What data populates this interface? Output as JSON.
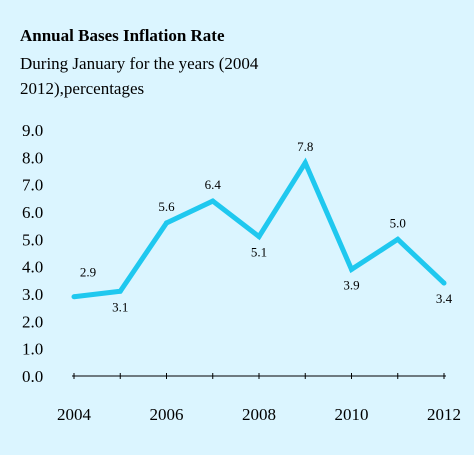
{
  "title": "Annual Bases Inflation Rate",
  "subtitle": "During January  for the years (2004\n2012),percentages",
  "colors": {
    "background": "#dbf5ff",
    "line": "#1fc8ef"
  },
  "chart_data": {
    "type": "line",
    "title": "Annual Bases Inflation Rate",
    "subtitle": "During January  for the years (2004\n2012),percentages",
    "x": [
      2004,
      2005,
      2006,
      2007,
      2008,
      2009,
      2010,
      2011,
      2012
    ],
    "values": [
      2.9,
      3.1,
      5.6,
      6.4,
      5.1,
      7.8,
      3.9,
      5.0,
      3.4
    ],
    "data_labels": [
      "2.9",
      "3.1",
      "5.6",
      "6.4",
      "5.1",
      "7.8",
      "3.9",
      "5.0",
      "3.4"
    ],
    "ylim": [
      0,
      9
    ],
    "yticks": [
      "0.0",
      "1.0",
      "2.0",
      "3.0",
      "4.0",
      "5.0",
      "6.0",
      "7.0",
      "8.0",
      "9.0"
    ],
    "xticks": [
      "2004",
      "2006",
      "2008",
      "2010",
      "2012"
    ],
    "grid": false,
    "legend": "none"
  }
}
